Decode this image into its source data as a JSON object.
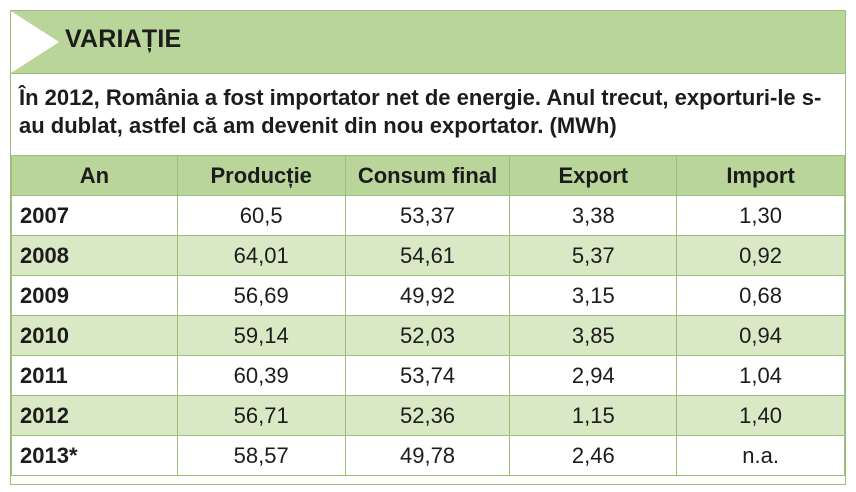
{
  "header": {
    "title": "VARIAȚIE"
  },
  "subtitle": "În 2012, România a fost importator net de energie. Anul trecut, exporturi-le s-au dublat, astfel că am devenit din nou exportator. (MWh)",
  "table": {
    "columns": [
      "An",
      "Producție",
      "Consum final",
      "Export",
      "Import"
    ],
    "rows": [
      [
        "2007",
        "60,5",
        "53,37",
        "3,38",
        "1,30"
      ],
      [
        "2008",
        "64,01",
        "54,61",
        "5,37",
        "0,92"
      ],
      [
        "2009",
        "56,69",
        "49,92",
        "3,15",
        "0,68"
      ],
      [
        "2010",
        "59,14",
        "52,03",
        "3,85",
        "0,94"
      ],
      [
        "2011",
        "60,39",
        "53,74",
        "2,94",
        "1,04"
      ],
      [
        "2012",
        "56,71",
        "52,36",
        "1,15",
        "1,40"
      ],
      [
        "2013*",
        "58,57",
        "49,78",
        "2,46",
        "n.a."
      ]
    ]
  },
  "colors": {
    "header_bg": "#b9d59a",
    "row_alt_bg": "#d9e8c5",
    "border": "#9dbd7a"
  }
}
